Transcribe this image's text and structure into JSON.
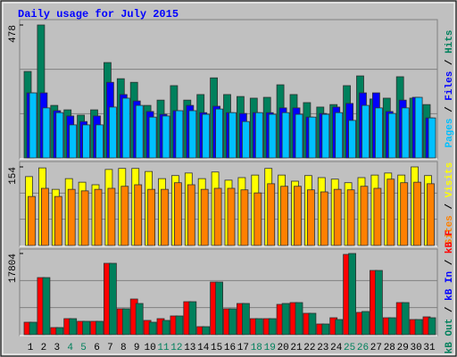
{
  "chart_data": [
    {
      "type": "bar",
      "title": "Daily usage for July 2015",
      "categories": [
        "1",
        "2",
        "3",
        "4",
        "5",
        "6",
        "7",
        "8",
        "9",
        "10",
        "11",
        "12",
        "13",
        "14",
        "15",
        "16",
        "17",
        "18",
        "19",
        "20",
        "21",
        "22",
        "23",
        "24",
        "25",
        "26",
        "27",
        "28",
        "29",
        "30",
        "31"
      ],
      "category_colors": [
        "#000000",
        "#000000",
        "#000000",
        "#00805c",
        "#00805c",
        "#000000",
        "#000000",
        "#000000",
        "#000000",
        "#000000",
        "#00805c",
        "#00805c",
        "#000000",
        "#000000",
        "#000000",
        "#000000",
        "#000000",
        "#00805c",
        "#00805c",
        "#000000",
        "#000000",
        "#000000",
        "#000000",
        "#000000",
        "#00805c",
        "#00805c",
        "#000000",
        "#000000",
        "#000000",
        "#000000",
        "#000000"
      ],
      "ylim": [
        0,
        478
      ],
      "yticks": [
        478
      ],
      "series": [
        {
          "name": "Hits",
          "color": "#00805c",
          "values": [
            311,
            478,
            189,
            173,
            154,
            173,
            343,
            285,
            272,
            189,
            208,
            260,
            208,
            228,
            288,
            228,
            221,
            215,
            218,
            263,
            228,
            199,
            183,
            192,
            260,
            295,
            212,
            215,
            292,
            215,
            192
          ]
        },
        {
          "name": "Files",
          "color": "#0000ff",
          "values": [
            234,
            234,
            170,
            151,
            131,
            151,
            272,
            228,
            205,
            167,
            157,
            170,
            189,
            163,
            186,
            163,
            160,
            163,
            163,
            180,
            180,
            147,
            160,
            183,
            196,
            234,
            234,
            167,
            208,
            218,
            144
          ]
        },
        {
          "name": "Pages",
          "color": "#00c0ff",
          "values": [
            234,
            180,
            163,
            119,
            119,
            119,
            183,
            215,
            189,
            147,
            151,
            170,
            170,
            157,
            176,
            163,
            131,
            163,
            157,
            163,
            157,
            147,
            157,
            163,
            135,
            189,
            180,
            160,
            180,
            218,
            144
          ]
        }
      ]
    },
    {
      "type": "bar",
      "ylim": [
        0,
        154
      ],
      "yticks": [
        154
      ],
      "series": [
        {
          "name": "Visits",
          "color": "#ffff00",
          "values": [
            135,
            152,
            110,
            131,
            124,
            119,
            149,
            151,
            151,
            145,
            131,
            137,
            142,
            131,
            144,
            128,
            133,
            138,
            151,
            138,
            126,
            137,
            133,
            130,
            123,
            133,
            138,
            142,
            138,
            154,
            137
          ]
        },
        {
          "name": "Sites",
          "color": "#ff8000",
          "values": [
            96,
            112,
            96,
            110,
            107,
            110,
            112,
            116,
            119,
            110,
            110,
            123,
            119,
            110,
            112,
            112,
            109,
            103,
            121,
            116,
            116,
            109,
            105,
            110,
            109,
            116,
            112,
            130,
            123,
            124,
            121
          ]
        }
      ]
    },
    {
      "type": "bar",
      "ylim": [
        0,
        17804
      ],
      "yticks": [
        17804
      ],
      "series": [
        {
          "name": "kB F",
          "color": "#ff0000",
          "values": [
            2738,
            12520,
            1565,
            3521,
            2934,
            2934,
            15650,
            5673,
            7824,
            3130,
            3521,
            4108,
            7237,
            1760,
            11540,
            5673,
            6846,
            3521,
            3521,
            6650,
            7042,
            4694,
            2347,
            3716,
            17604,
            4890,
            14083,
            3716,
            7042,
            3325,
            3912
          ]
        },
        {
          "name": "kB In",
          "color": "#0000ff",
          "values": [
            0,
            0,
            0,
            0,
            0,
            0,
            0,
            0,
            0,
            0,
            0,
            0,
            0,
            0,
            0,
            0,
            0,
            0,
            0,
            0,
            0,
            0,
            0,
            0,
            0,
            0,
            0,
            0,
            0,
            0,
            0
          ]
        },
        {
          "name": "kB Out",
          "color": "#00805c",
          "values": [
            2738,
            12520,
            1565,
            3521,
            2934,
            2934,
            15650,
            5673,
            6846,
            2738,
            3130,
            4108,
            7237,
            1760,
            11540,
            5673,
            6846,
            3521,
            3521,
            6846,
            7042,
            4694,
            2347,
            3325,
            17804,
            5086,
            14083,
            3716,
            7042,
            3325,
            3716
          ]
        }
      ]
    }
  ]
}
